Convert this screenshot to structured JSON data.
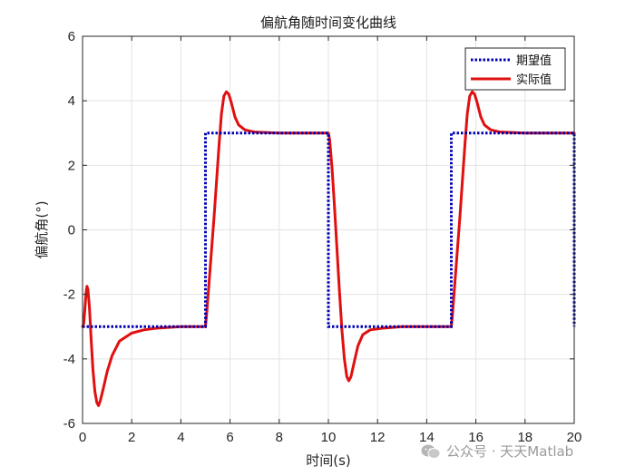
{
  "chart_data": {
    "type": "line",
    "title": "偏航角随时间变化曲线",
    "xlabel": "时间(s)",
    "ylabel": "偏航角(°)",
    "xlim": [
      0,
      20
    ],
    "ylim": [
      -6,
      6
    ],
    "xticks": [
      0,
      2,
      4,
      6,
      8,
      10,
      12,
      14,
      16,
      18,
      20
    ],
    "yticks": [
      -6,
      -4,
      -2,
      0,
      2,
      4,
      6
    ],
    "grid": true,
    "legend_position": "top-right",
    "series": [
      {
        "name": "期望值",
        "color": "#0000b3",
        "style": "dotted",
        "points": [
          [
            0,
            -3
          ],
          [
            5,
            -3
          ],
          [
            5,
            3
          ],
          [
            10,
            3
          ],
          [
            10,
            -3
          ],
          [
            15,
            -3
          ],
          [
            15,
            3
          ],
          [
            20,
            3
          ],
          [
            20,
            -3
          ]
        ]
      },
      {
        "name": "实际值",
        "color": "#e01010",
        "style": "solid",
        "points": [
          [
            0,
            -3
          ],
          [
            0.05,
            -2.9
          ],
          [
            0.1,
            -2.4
          ],
          [
            0.15,
            -1.9
          ],
          [
            0.18,
            -1.75
          ],
          [
            0.22,
            -1.85
          ],
          [
            0.28,
            -2.4
          ],
          [
            0.35,
            -3.4
          ],
          [
            0.42,
            -4.3
          ],
          [
            0.5,
            -5.0
          ],
          [
            0.58,
            -5.35
          ],
          [
            0.65,
            -5.45
          ],
          [
            0.72,
            -5.3
          ],
          [
            0.85,
            -4.9
          ],
          [
            1.0,
            -4.4
          ],
          [
            1.2,
            -3.9
          ],
          [
            1.5,
            -3.45
          ],
          [
            2.0,
            -3.2
          ],
          [
            2.5,
            -3.1
          ],
          [
            3.0,
            -3.05
          ],
          [
            4.0,
            -3.0
          ],
          [
            5.0,
            -3.0
          ],
          [
            5.05,
            -2.6
          ],
          [
            5.15,
            -1.6
          ],
          [
            5.25,
            -0.6
          ],
          [
            5.35,
            0.4
          ],
          [
            5.45,
            1.5
          ],
          [
            5.55,
            2.6
          ],
          [
            5.65,
            3.6
          ],
          [
            5.75,
            4.15
          ],
          [
            5.85,
            4.28
          ],
          [
            5.95,
            4.2
          ],
          [
            6.05,
            3.95
          ],
          [
            6.2,
            3.5
          ],
          [
            6.35,
            3.25
          ],
          [
            6.6,
            3.1
          ],
          [
            7.0,
            3.03
          ],
          [
            8.0,
            3.0
          ],
          [
            10.0,
            3.0
          ],
          [
            10.05,
            2.8
          ],
          [
            10.15,
            1.9
          ],
          [
            10.25,
            0.7
          ],
          [
            10.35,
            -0.6
          ],
          [
            10.45,
            -1.9
          ],
          [
            10.55,
            -3.1
          ],
          [
            10.65,
            -4.0
          ],
          [
            10.75,
            -4.55
          ],
          [
            10.83,
            -4.68
          ],
          [
            10.92,
            -4.55
          ],
          [
            11.05,
            -4.1
          ],
          [
            11.2,
            -3.6
          ],
          [
            11.4,
            -3.25
          ],
          [
            11.7,
            -3.1
          ],
          [
            12.2,
            -3.05
          ],
          [
            13.0,
            -3.0
          ],
          [
            15.0,
            -3.0
          ],
          [
            15.05,
            -2.6
          ],
          [
            15.15,
            -1.6
          ],
          [
            15.25,
            -0.6
          ],
          [
            15.35,
            0.4
          ],
          [
            15.45,
            1.5
          ],
          [
            15.55,
            2.6
          ],
          [
            15.65,
            3.6
          ],
          [
            15.75,
            4.15
          ],
          [
            15.85,
            4.28
          ],
          [
            15.95,
            4.2
          ],
          [
            16.05,
            3.95
          ],
          [
            16.2,
            3.5
          ],
          [
            16.35,
            3.25
          ],
          [
            16.6,
            3.1
          ],
          [
            17.0,
            3.03
          ],
          [
            18.0,
            3.0
          ],
          [
            20.0,
            3.0
          ]
        ]
      }
    ]
  },
  "watermark": {
    "text": "公众号 · 天天Matlab",
    "icon": "wechat-icon"
  }
}
